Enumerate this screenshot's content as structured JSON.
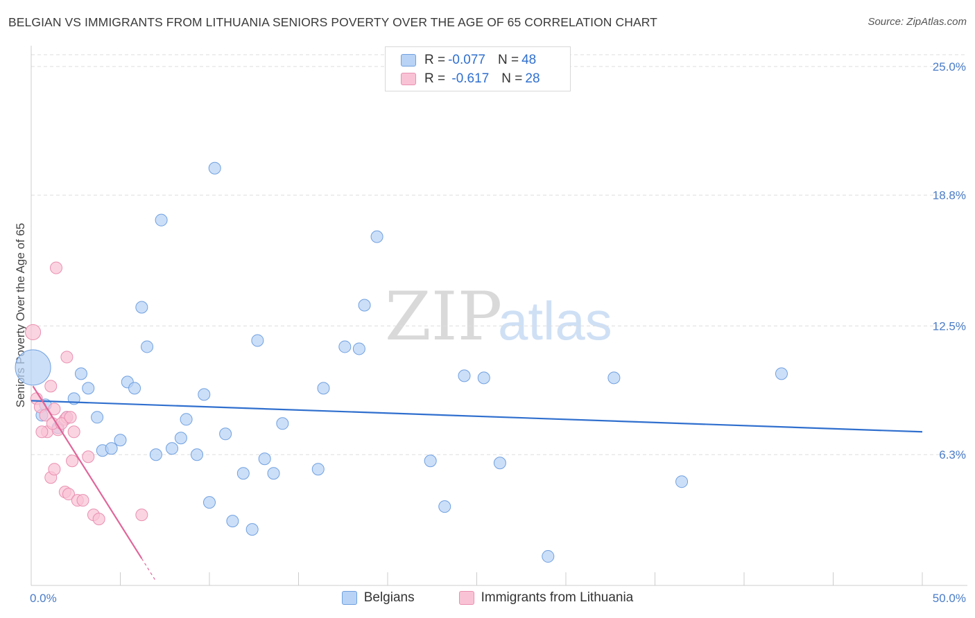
{
  "header": {
    "title": "BELGIAN VS IMMIGRANTS FROM LITHUANIA SENIORS POVERTY OVER THE AGE OF 65 CORRELATION CHART",
    "source": "Source: ZipAtlas.com"
  },
  "colors": {
    "blue_fill": "#b8d3f5",
    "blue_stroke": "#6fa0e0",
    "blue_line": "#2f6fce",
    "pink_fill": "#f9c3d5",
    "pink_stroke": "#e98fb0",
    "pink_line": "#e0669a",
    "tick_text": "#4a7cc7",
    "grid": "#dedede"
  },
  "legend": {
    "rows": [
      {
        "r_label": "R = ",
        "r_value": "-0.077",
        "n_label": "N = ",
        "n_value": "48"
      },
      {
        "r_label": "R = ",
        "r_value": " -0.617",
        "n_label": "N = ",
        "n_value": "28"
      }
    ]
  },
  "watermark": {
    "part1": "ZIP",
    "part2": "atlas"
  },
  "chart_data": {
    "type": "scatter",
    "title": "BELGIAN VS IMMIGRANTS FROM LITHUANIA SENIORS POVERTY OVER THE AGE OF 65 CORRELATION CHART",
    "xlabel": "",
    "ylabel": "Seniors Poverty Over the Age of 65",
    "xlim": [
      0,
      50
    ],
    "ylim": [
      0,
      26
    ],
    "x_tick_labels": [
      {
        "value": 0,
        "label": "0.0%"
      },
      {
        "value": 50,
        "label": "50.0%"
      }
    ],
    "x_minor_ticks": [
      0,
      5,
      10,
      15,
      20,
      25,
      30,
      35,
      40,
      45,
      50
    ],
    "y_ticks": [
      {
        "value": 6.3,
        "label": "6.3%"
      },
      {
        "value": 12.5,
        "label": "12.5%"
      },
      {
        "value": 18.8,
        "label": "18.8%"
      },
      {
        "value": 25.0,
        "label": "25.0%"
      }
    ],
    "series": [
      {
        "name": "Belgians",
        "color": "blue",
        "trend": {
          "x": [
            0,
            50
          ],
          "y": [
            8.9,
            7.4
          ]
        },
        "points": [
          {
            "x": 0.1,
            "y": 10.5,
            "s": 3.0
          },
          {
            "x": 0.8,
            "y": 8.7,
            "s": 1
          },
          {
            "x": 0.6,
            "y": 8.2,
            "s": 1
          },
          {
            "x": 1.5,
            "y": 7.6,
            "s": 1
          },
          {
            "x": 2.0,
            "y": 8.1,
            "s": 1
          },
          {
            "x": 2.4,
            "y": 9.0,
            "s": 1
          },
          {
            "x": 2.8,
            "y": 10.2,
            "s": 1
          },
          {
            "x": 3.2,
            "y": 9.5,
            "s": 1
          },
          {
            "x": 3.7,
            "y": 8.1,
            "s": 1
          },
          {
            "x": 4.0,
            "y": 6.5,
            "s": 1
          },
          {
            "x": 4.5,
            "y": 6.6,
            "s": 1
          },
          {
            "x": 5.0,
            "y": 7.0,
            "s": 1
          },
          {
            "x": 5.4,
            "y": 9.8,
            "s": 1
          },
          {
            "x": 5.8,
            "y": 9.5,
            "s": 1
          },
          {
            "x": 6.2,
            "y": 13.4,
            "s": 1
          },
          {
            "x": 6.5,
            "y": 11.5,
            "s": 1
          },
          {
            "x": 7.0,
            "y": 6.3,
            "s": 1
          },
          {
            "x": 7.3,
            "y": 17.6,
            "s": 1
          },
          {
            "x": 7.9,
            "y": 6.6,
            "s": 1
          },
          {
            "x": 8.4,
            "y": 7.1,
            "s": 1
          },
          {
            "x": 8.7,
            "y": 8.0,
            "s": 1
          },
          {
            "x": 9.3,
            "y": 6.3,
            "s": 1
          },
          {
            "x": 9.7,
            "y": 9.2,
            "s": 1
          },
          {
            "x": 10.0,
            "y": 4.0,
            "s": 1
          },
          {
            "x": 10.3,
            "y": 20.1,
            "s": 1
          },
          {
            "x": 10.9,
            "y": 7.3,
            "s": 1
          },
          {
            "x": 11.3,
            "y": 3.1,
            "s": 1
          },
          {
            "x": 11.9,
            "y": 5.4,
            "s": 1
          },
          {
            "x": 12.4,
            "y": 2.7,
            "s": 1
          },
          {
            "x": 12.7,
            "y": 11.8,
            "s": 1
          },
          {
            "x": 13.1,
            "y": 6.1,
            "s": 1
          },
          {
            "x": 13.6,
            "y": 5.4,
            "s": 1
          },
          {
            "x": 14.1,
            "y": 7.8,
            "s": 1
          },
          {
            "x": 16.1,
            "y": 5.6,
            "s": 1
          },
          {
            "x": 16.4,
            "y": 9.5,
            "s": 1
          },
          {
            "x": 17.6,
            "y": 11.5,
            "s": 1
          },
          {
            "x": 18.4,
            "y": 11.4,
            "s": 1
          },
          {
            "x": 18.7,
            "y": 13.5,
            "s": 1
          },
          {
            "x": 19.4,
            "y": 16.8,
            "s": 1
          },
          {
            "x": 22.4,
            "y": 6.0,
            "s": 1
          },
          {
            "x": 23.2,
            "y": 3.8,
            "s": 1
          },
          {
            "x": 24.3,
            "y": 10.1,
            "s": 1
          },
          {
            "x": 25.4,
            "y": 10.0,
            "s": 1
          },
          {
            "x": 26.3,
            "y": 5.9,
            "s": 1
          },
          {
            "x": 29.0,
            "y": 1.4,
            "s": 1
          },
          {
            "x": 32.7,
            "y": 10.0,
            "s": 1
          },
          {
            "x": 36.5,
            "y": 5.0,
            "s": 1
          },
          {
            "x": 42.1,
            "y": 10.2,
            "s": 1
          }
        ]
      },
      {
        "name": "Immigrants from Lithuania",
        "color": "pink",
        "trend": {
          "x": [
            0.1,
            6.2
          ],
          "y": [
            9.6,
            1.3
          ]
        },
        "trend_dashed": {
          "x": [
            6.2,
            7.0
          ],
          "y": [
            1.3,
            0.2
          ]
        },
        "points": [
          {
            "x": 0.1,
            "y": 12.2,
            "s": 1.3
          },
          {
            "x": 0.3,
            "y": 9.0,
            "s": 1
          },
          {
            "x": 0.5,
            "y": 8.6,
            "s": 1
          },
          {
            "x": 0.8,
            "y": 8.2,
            "s": 1
          },
          {
            "x": 0.9,
            "y": 7.4,
            "s": 1
          },
          {
            "x": 1.1,
            "y": 9.6,
            "s": 1
          },
          {
            "x": 1.3,
            "y": 8.5,
            "s": 1
          },
          {
            "x": 1.5,
            "y": 7.5,
            "s": 1
          },
          {
            "x": 1.2,
            "y": 7.8,
            "s": 1
          },
          {
            "x": 1.1,
            "y": 5.2,
            "s": 1
          },
          {
            "x": 1.3,
            "y": 5.6,
            "s": 1
          },
          {
            "x": 1.9,
            "y": 8.0,
            "s": 1
          },
          {
            "x": 2.0,
            "y": 8.1,
            "s": 1
          },
          {
            "x": 1.7,
            "y": 7.8,
            "s": 1
          },
          {
            "x": 1.9,
            "y": 4.5,
            "s": 1
          },
          {
            "x": 2.1,
            "y": 4.4,
            "s": 1
          },
          {
            "x": 2.3,
            "y": 6.0,
            "s": 1
          },
          {
            "x": 1.4,
            "y": 15.3,
            "s": 1
          },
          {
            "x": 2.0,
            "y": 11.0,
            "s": 1
          },
          {
            "x": 2.4,
            "y": 7.4,
            "s": 1
          },
          {
            "x": 2.6,
            "y": 4.1,
            "s": 1
          },
          {
            "x": 2.9,
            "y": 4.1,
            "s": 1
          },
          {
            "x": 3.2,
            "y": 6.2,
            "s": 1
          },
          {
            "x": 3.5,
            "y": 3.4,
            "s": 1
          },
          {
            "x": 3.8,
            "y": 3.2,
            "s": 1
          },
          {
            "x": 6.2,
            "y": 3.4,
            "s": 1
          },
          {
            "x": 2.2,
            "y": 8.1,
            "s": 1
          },
          {
            "x": 0.6,
            "y": 7.4,
            "s": 1
          }
        ]
      }
    ]
  },
  "bottom_legend": {
    "items": [
      {
        "label": "Belgians"
      },
      {
        "label": "Immigrants from Lithuania"
      }
    ]
  }
}
